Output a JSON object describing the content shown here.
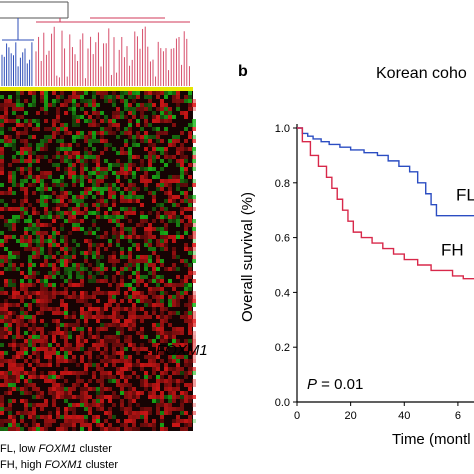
{
  "panel_a": {
    "legend_line1_prefix": "FL, low ",
    "legend_line1_gene": "FOXM1",
    "legend_line1_suffix": " cluster",
    "legend_line2_prefix": "FH, high ",
    "legend_line2_gene": "FOXM1",
    "legend_line2_suffix": " cluster",
    "foxm1_arrow": "←",
    "foxm1_label": "FOXM1",
    "colors": {
      "fl_dendrogram": "#2f4fb8",
      "fh_dendrogram": "#d23a5a",
      "cluster_bar": "#e6e600",
      "up": "#e01818",
      "down": "#18b818"
    }
  },
  "chart_data": {
    "type": "line",
    "panel_label": "b",
    "title": "Korean coho",
    "xlabel": "Time (montl",
    "ylabel": "Overall survival (%)",
    "xlim": [
      0,
      66
    ],
    "ylim": [
      0.0,
      1.0
    ],
    "x_ticks": [
      "0",
      "20",
      "40",
      "6"
    ],
    "y_ticks": [
      "0.0",
      "0.2",
      "0.4",
      "0.6",
      "0.8",
      "1.0"
    ],
    "annotation_p_symbol": "P",
    "annotation_p_value": " = 0.01",
    "series": [
      {
        "name": "FL",
        "color": "#2b4dc2",
        "x": [
          0,
          2,
          4,
          6,
          9,
          12,
          16,
          20,
          25,
          30,
          34,
          38,
          42,
          45,
          48,
          50,
          52,
          56,
          60,
          66
        ],
        "y": [
          1.0,
          0.98,
          0.97,
          0.96,
          0.95,
          0.94,
          0.93,
          0.92,
          0.91,
          0.9,
          0.88,
          0.86,
          0.84,
          0.8,
          0.76,
          0.72,
          0.68,
          0.68,
          0.68,
          0.68
        ]
      },
      {
        "name": "FH",
        "color": "#d8284a",
        "x": [
          0,
          2,
          5,
          8,
          11,
          13,
          15,
          17,
          19,
          21,
          24,
          28,
          32,
          36,
          40,
          45,
          50,
          54,
          58,
          62,
          66
        ],
        "y": [
          1.0,
          0.95,
          0.9,
          0.86,
          0.82,
          0.78,
          0.74,
          0.7,
          0.66,
          0.62,
          0.6,
          0.58,
          0.56,
          0.54,
          0.52,
          0.5,
          0.48,
          0.48,
          0.46,
          0.45,
          0.45
        ]
      }
    ],
    "legend": "inline labels at right"
  }
}
